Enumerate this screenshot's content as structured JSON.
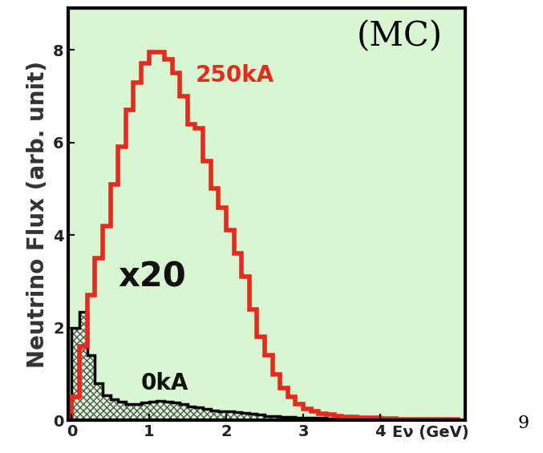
{
  "chart_data": {
    "type": "histogram",
    "x_label": "Eν (GeV)",
    "y_label": "Neutrino Flux (arb. unit)",
    "annotations": [
      "(MC)",
      "x20",
      "9"
    ],
    "bins": [
      0.0,
      0.1,
      0.2,
      0.3,
      0.4,
      0.5,
      0.6,
      0.7,
      0.8,
      0.9,
      1.0,
      1.1,
      1.2,
      1.3,
      1.4,
      1.5,
      1.6,
      1.7,
      1.8,
      1.9,
      2.0,
      2.1,
      2.2,
      2.3,
      2.4,
      2.5,
      2.6,
      2.7,
      2.8,
      2.9,
      3.0,
      3.1,
      3.2,
      3.3,
      3.4,
      3.5,
      3.6,
      3.7,
      3.8,
      3.9,
      4.0,
      4.1,
      4.2,
      4.3,
      4.4,
      4.5,
      4.6,
      4.7,
      4.8,
      4.9,
      5.0
    ],
    "series": [
      {
        "name": "250kA",
        "color": "#e8291c",
        "values": [
          0.5,
          1.6,
          2.7,
          3.5,
          4.2,
          5.1,
          5.9,
          6.7,
          7.3,
          7.7,
          7.95,
          7.95,
          7.8,
          7.5,
          7.0,
          6.4,
          6.3,
          5.6,
          5.0,
          4.6,
          4.1,
          3.6,
          3.1,
          2.4,
          1.8,
          1.4,
          1.0,
          0.7,
          0.5,
          0.35,
          0.25,
          0.2,
          0.15,
          0.12,
          0.1,
          0.08,
          0.07,
          0.06,
          0.05,
          0.05,
          0.04,
          0.04,
          0.03,
          0.03,
          0.03,
          0.03,
          0.02,
          0.02,
          0.02,
          0.02
        ]
      },
      {
        "name": "0kA",
        "color": "#000000",
        "values": [
          2.0,
          2.35,
          1.4,
          0.8,
          0.55,
          0.45,
          0.4,
          0.35,
          0.35,
          0.38,
          0.4,
          0.42,
          0.4,
          0.38,
          0.35,
          0.3,
          0.28,
          0.25,
          0.22,
          0.2,
          0.2,
          0.18,
          0.16,
          0.14,
          0.12,
          0.1,
          0.09,
          0.08,
          0.07,
          0.06,
          0.05,
          0.05,
          0.05,
          0.04,
          0.04,
          0.04,
          0.04,
          0.03,
          0.03,
          0.03,
          0.03,
          0.03,
          0.02,
          0.02,
          0.02,
          0.02,
          0.02,
          0.02,
          0.02,
          0.02
        ]
      }
    ],
    "xlim": [
      -0.05,
      5.1
    ],
    "ylim": [
      0,
      8.9
    ],
    "xticks": [
      0,
      1,
      2,
      3,
      4
    ],
    "yticks": [
      0,
      2,
      4,
      6,
      8
    ],
    "grid": false
  }
}
